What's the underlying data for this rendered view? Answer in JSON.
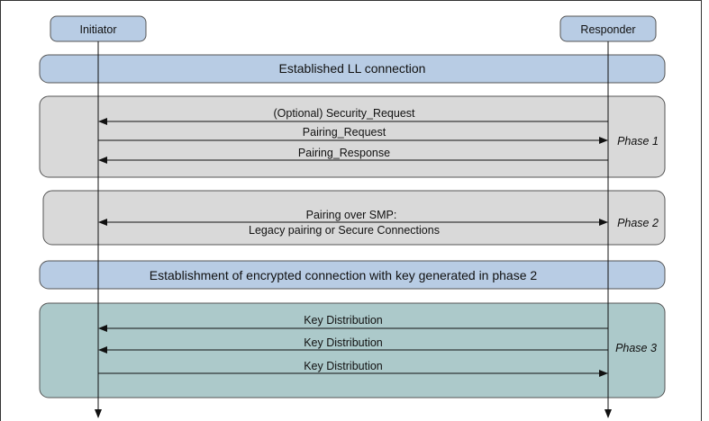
{
  "actors": {
    "initiator": "Initiator",
    "responder": "Responder"
  },
  "ll_connection": "Established LL connection",
  "phase1": {
    "label": "Phase 1",
    "messages": [
      {
        "text": "(Optional) Security_Request",
        "direction": "responder-to-initiator"
      },
      {
        "text": "Pairing_Request",
        "direction": "initiator-to-responder"
      },
      {
        "text": "Pairing_Response",
        "direction": "responder-to-initiator"
      }
    ]
  },
  "phase2": {
    "label": "Phase 2",
    "line1": "Pairing over SMP:",
    "line2": "Legacy pairing or Secure Connections",
    "direction": "bidirectional"
  },
  "encrypted": "Establishment of encrypted connection with key generated in phase 2",
  "phase3": {
    "label": "Phase 3",
    "messages": [
      {
        "text": "Key Distribution",
        "direction": "responder-to-initiator"
      },
      {
        "text": "Key Distribution",
        "direction": "responder-to-initiator"
      },
      {
        "text": "Key Distribution",
        "direction": "initiator-to-responder"
      }
    ]
  },
  "colors": {
    "blue": "#b8cce4",
    "gray": "#d9d9d9",
    "teal": "#acc9ca",
    "stroke": "#555555"
  }
}
